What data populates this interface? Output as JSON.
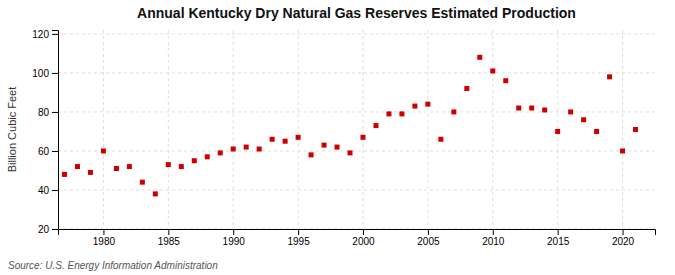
{
  "chart_data": {
    "type": "scatter",
    "title": "Annual Kentucky Dry Natural Gas Reserves Estimated Production",
    "ylabel": "Billion Cubic Feet",
    "annotations": [
      "Source: U.S. Energy Information Administration"
    ],
    "x": [
      1977,
      1978,
      1979,
      1980,
      1981,
      1982,
      1983,
      1984,
      1985,
      1986,
      1987,
      1988,
      1989,
      1990,
      1991,
      1992,
      1993,
      1994,
      1995,
      1996,
      1997,
      1998,
      1999,
      2000,
      2001,
      2002,
      2003,
      2004,
      2005,
      2006,
      2007,
      2008,
      2009,
      2010,
      2011,
      2012,
      2013,
      2014,
      2015,
      2016,
      2017,
      2018,
      2019,
      2020,
      2021
    ],
    "values": [
      48,
      52,
      49,
      60,
      51,
      52,
      44,
      38,
      53,
      52,
      55,
      57,
      59,
      61,
      62,
      61,
      66,
      65,
      67,
      58,
      63,
      62,
      59,
      67,
      73,
      79,
      79,
      83,
      84,
      66,
      80,
      92,
      108,
      101,
      96,
      82,
      82,
      81,
      70,
      80,
      76,
      70,
      98,
      60,
      71
    ],
    "color": "#cc0000",
    "marker": "square",
    "xlim": [
      1976.5,
      2022.5
    ],
    "ylim": [
      20,
      122
    ],
    "xticks": [
      1980,
      1985,
      1990,
      1995,
      2000,
      2005,
      2010,
      2015,
      2020
    ],
    "yticks": [
      20,
      40,
      60,
      80,
      100,
      120
    ],
    "grid": true
  }
}
